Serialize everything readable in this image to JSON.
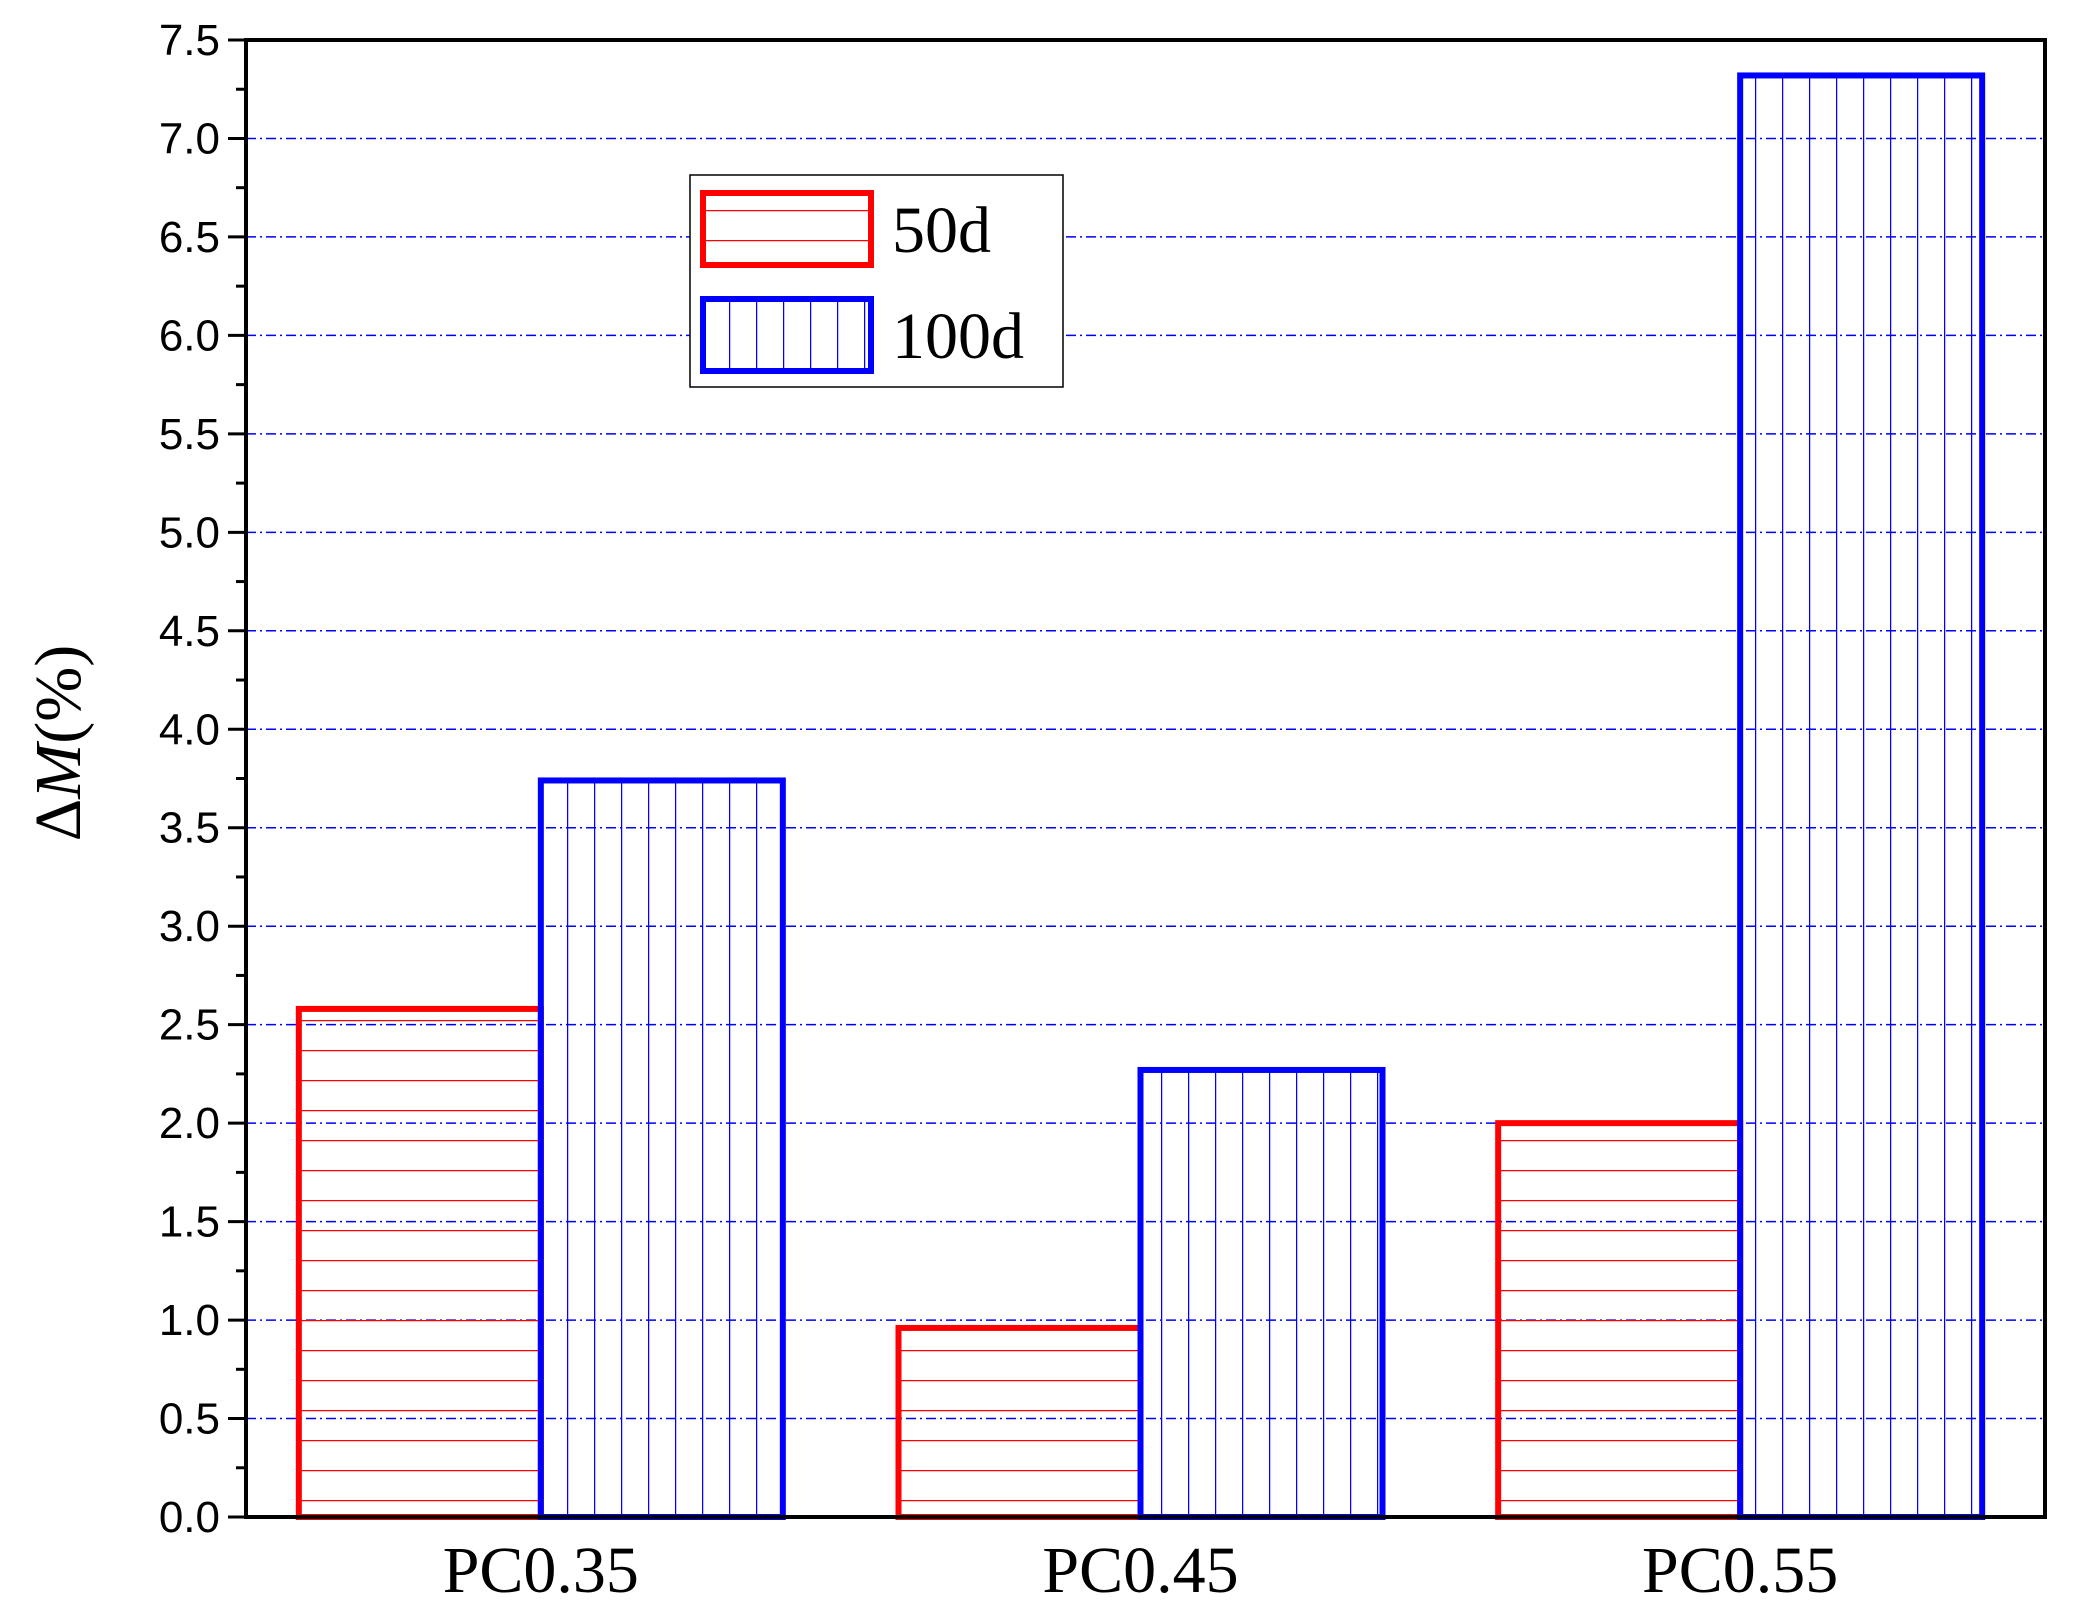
{
  "chart_data": {
    "type": "bar",
    "categories": [
      "PC0.35",
      "PC0.45",
      "PC0.55"
    ],
    "series": [
      {
        "name": "50d",
        "values": [
          2.58,
          0.96,
          2.0
        ],
        "color": "#ff0000",
        "pattern": "horizontal-lines"
      },
      {
        "name": "100d",
        "values": [
          3.74,
          2.27,
          7.32
        ],
        "color": "#0000ff",
        "pattern": "vertical-lines"
      }
    ],
    "title": "",
    "xlabel": "",
    "ylabel": "ΔM(%)",
    "ylabel_parts": {
      "delta": "Δ",
      "var": "M",
      "unit": "(%)"
    },
    "ylim": [
      0,
      7.5
    ],
    "yticks": [
      "0.0",
      "0.5",
      "1.0",
      "1.5",
      "2.0",
      "2.5",
      "3.0",
      "3.5",
      "4.0",
      "4.5",
      "5.0",
      "5.5",
      "6.0",
      "6.5",
      "7.0",
      "7.5"
    ],
    "grid": "horizontal dash-dot",
    "grid_color": "#0000ff",
    "legend_position": "top-left-center"
  }
}
